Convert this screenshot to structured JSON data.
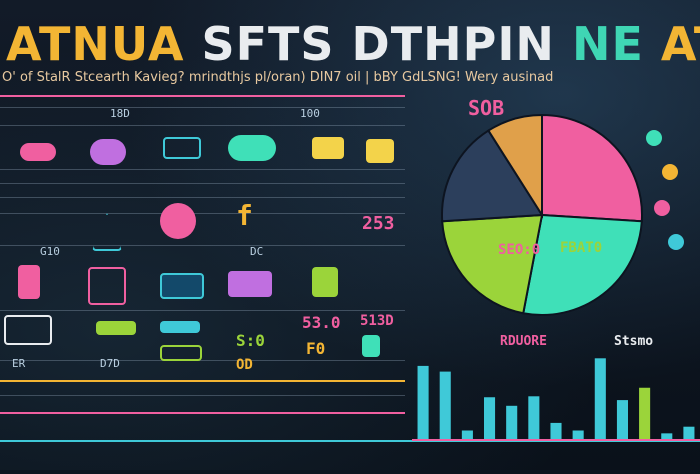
{
  "header": {
    "title_part1": "ATNUA",
    "title_part2": "SFTS DTHPIN",
    "title_part3": "NE",
    "title_part4": "ATTLNN!",
    "subtitle": "O' of StalR Stcearth Kavieg? mrindthjs pl/oran) DIN7 oil | bBY GdLSNG! Wery ausinad"
  },
  "left_panel": {
    "label_top_right": "SOB",
    "label_mid_right": "253",
    "label_f": "f",
    "label_row4": "53.0",
    "label_row5_right": "513D",
    "label_row6": "S:0",
    "label_row6b": "F0",
    "label_row7": "OD",
    "small_labels": [
      "18D",
      "100",
      "G10",
      "DC",
      "ER",
      "D7D"
    ]
  },
  "pie": {
    "label_center": "SEO:0",
    "label_right": "FBAT0"
  },
  "bars": {
    "label_left": "RDUORE",
    "label_right": "Stsmo"
  },
  "chart_data": [
    {
      "type": "pie",
      "values": [
        26,
        27,
        21,
        17,
        9
      ],
      "colors": [
        "#f05fa0",
        "#3fe0b8",
        "#9bd43a",
        "#2c3f5c",
        "#e0a04a"
      ]
    },
    {
      "type": "bar",
      "values": [
        78,
        72,
        10,
        45,
        36,
        46,
        18,
        10,
        86,
        42,
        55,
        7,
        14
      ],
      "colors": [
        "#3fc9d8",
        "#3fc9d8",
        "#3fc9d8",
        "#3fc9d8",
        "#3fc9d8",
        "#3fc9d8",
        "#3fc9d8",
        "#3fc9d8",
        "#3fc9d8",
        "#3fc9d8",
        "#9bd43a",
        "#3fc9d8",
        "#3fc9d8"
      ]
    }
  ]
}
